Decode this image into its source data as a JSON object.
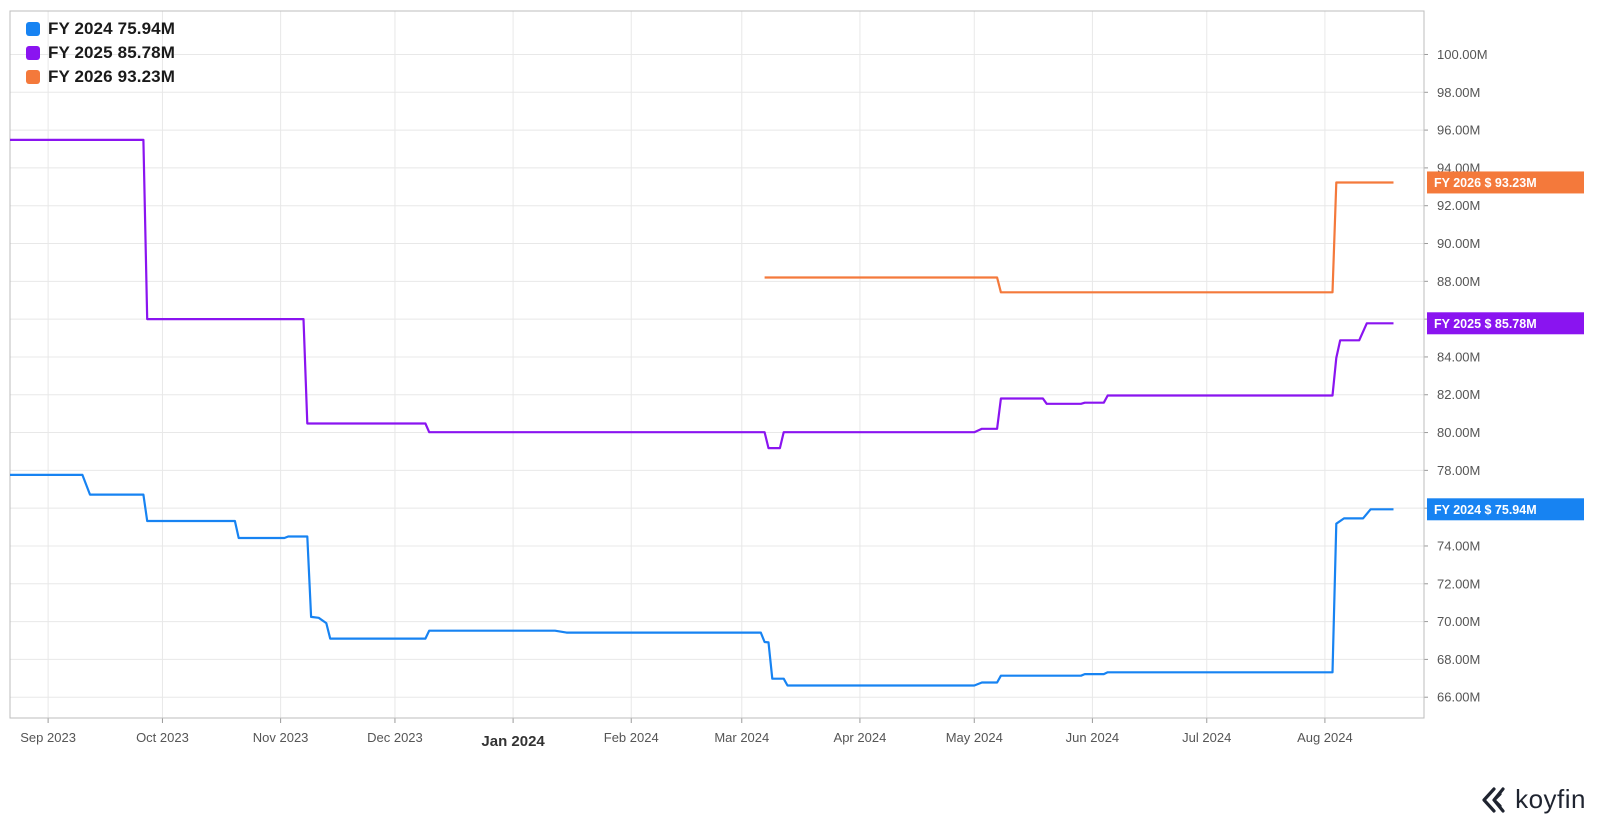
{
  "legend": [
    {
      "name": "FY 2024",
      "value": "75.94M",
      "color": "#1783f2"
    },
    {
      "name": "FY 2025",
      "value": "85.78M",
      "color": "#8a14f0"
    },
    {
      "name": "FY 2026",
      "value": "93.23M",
      "color": "#f4793b"
    }
  ],
  "brand": {
    "name": "koyfin",
    "icon": "koyfin-logo-icon"
  },
  "chart_data": {
    "type": "line",
    "title": "",
    "xlabel": "",
    "ylabel": "",
    "x_ticks": [
      {
        "date": "2023-09-01",
        "label": "Sep 2023",
        "bold": false
      },
      {
        "date": "2023-10-01",
        "label": "Oct 2023",
        "bold": false
      },
      {
        "date": "2023-11-01",
        "label": "Nov 2023",
        "bold": false
      },
      {
        "date": "2023-12-01",
        "label": "Dec 2023",
        "bold": false
      },
      {
        "date": "2024-01-01",
        "label": "Jan 2024",
        "bold": true
      },
      {
        "date": "2024-02-01",
        "label": "Feb 2024",
        "bold": false
      },
      {
        "date": "2024-03-01",
        "label": "Mar 2024",
        "bold": false
      },
      {
        "date": "2024-04-01",
        "label": "Apr 2024",
        "bold": false
      },
      {
        "date": "2024-05-01",
        "label": "May 2024",
        "bold": false
      },
      {
        "date": "2024-06-01",
        "label": "Jun 2024",
        "bold": false
      },
      {
        "date": "2024-07-01",
        "label": "Jul 2024",
        "bold": false
      },
      {
        "date": "2024-08-01",
        "label": "Aug 2024",
        "bold": false
      }
    ],
    "xlim": [
      "2023-08-22",
      "2024-08-27"
    ],
    "y_ticks": [
      {
        "value": 66,
        "label": "66.00M"
      },
      {
        "value": 68,
        "label": "68.00M"
      },
      {
        "value": 70,
        "label": "70.00M"
      },
      {
        "value": 72,
        "label": "72.00M"
      },
      {
        "value": 74,
        "label": "74.00M"
      },
      {
        "value": 76,
        "label": "76.00M"
      },
      {
        "value": 78,
        "label": "78.00M"
      },
      {
        "value": 80,
        "label": "80.00M"
      },
      {
        "value": 82,
        "label": "82.00M"
      },
      {
        "value": 84,
        "label": "84.00M"
      },
      {
        "value": 86,
        "label": "86.00M"
      },
      {
        "value": 88,
        "label": "88.00M"
      },
      {
        "value": 90,
        "label": "90.00M"
      },
      {
        "value": 92,
        "label": "92.00M"
      },
      {
        "value": 94,
        "label": "94.00M"
      },
      {
        "value": 96,
        "label": "96.00M"
      },
      {
        "value": 98,
        "label": "98.00M"
      },
      {
        "value": 100,
        "label": "100.00M"
      }
    ],
    "ylim": [
      64.9,
      102.3
    ],
    "grid": true,
    "legend_position": "top-left",
    "series": [
      {
        "name": "FY 2024",
        "color": "#1783f2",
        "end_label": "FY 2024  $ 75.94M",
        "points": [
          [
            "2023-08-22",
            77.76
          ],
          [
            "2023-09-10",
            77.76
          ],
          [
            "2023-09-12",
            76.72
          ],
          [
            "2023-09-26",
            76.72
          ],
          [
            "2023-09-27",
            75.32
          ],
          [
            "2023-10-20",
            75.32
          ],
          [
            "2023-10-21",
            74.42
          ],
          [
            "2023-11-02",
            74.42
          ],
          [
            "2023-11-03",
            74.5
          ],
          [
            "2023-11-08",
            74.5
          ],
          [
            "2023-11-09",
            70.25
          ],
          [
            "2023-11-11",
            70.2
          ],
          [
            "2023-11-13",
            69.92
          ],
          [
            "2023-11-14",
            69.1
          ],
          [
            "2023-12-09",
            69.1
          ],
          [
            "2023-12-10",
            69.52
          ],
          [
            "2024-01-12",
            69.52
          ],
          [
            "2024-01-15",
            69.42
          ],
          [
            "2024-03-06",
            69.42
          ],
          [
            "2024-03-07",
            68.92
          ],
          [
            "2024-03-08",
            68.9
          ],
          [
            "2024-03-09",
            66.98
          ],
          [
            "2024-03-12",
            66.98
          ],
          [
            "2024-03-13",
            66.62
          ],
          [
            "2024-05-01",
            66.62
          ],
          [
            "2024-05-03",
            66.78
          ],
          [
            "2024-05-07",
            66.78
          ],
          [
            "2024-05-08",
            67.14
          ],
          [
            "2024-05-29",
            67.14
          ],
          [
            "2024-05-30",
            67.22
          ],
          [
            "2024-06-04",
            67.22
          ],
          [
            "2024-06-05",
            67.32
          ],
          [
            "2024-08-03",
            67.32
          ],
          [
            "2024-08-04",
            75.18
          ],
          [
            "2024-08-06",
            75.46
          ],
          [
            "2024-08-11",
            75.46
          ],
          [
            "2024-08-13",
            75.94
          ],
          [
            "2024-08-19",
            75.94
          ]
        ]
      },
      {
        "name": "FY 2025",
        "color": "#8a14f0",
        "end_label": "FY 2025  $ 85.78M",
        "points": [
          [
            "2023-08-22",
            95.48
          ],
          [
            "2023-09-26",
            95.48
          ],
          [
            "2023-09-27",
            86.0
          ],
          [
            "2023-11-07",
            86.0
          ],
          [
            "2023-11-08",
            80.48
          ],
          [
            "2023-12-09",
            80.48
          ],
          [
            "2023-12-10",
            80.02
          ],
          [
            "2024-03-07",
            80.02
          ],
          [
            "2024-03-08",
            79.18
          ],
          [
            "2024-03-11",
            79.18
          ],
          [
            "2024-03-12",
            80.02
          ],
          [
            "2024-05-01",
            80.02
          ],
          [
            "2024-05-03",
            80.2
          ],
          [
            "2024-05-07",
            80.2
          ],
          [
            "2024-05-08",
            81.8
          ],
          [
            "2024-05-19",
            81.8
          ],
          [
            "2024-05-20",
            81.52
          ],
          [
            "2024-05-29",
            81.52
          ],
          [
            "2024-05-30",
            81.58
          ],
          [
            "2024-06-04",
            81.58
          ],
          [
            "2024-06-05",
            81.96
          ],
          [
            "2024-08-03",
            81.96
          ],
          [
            "2024-08-04",
            83.95
          ],
          [
            "2024-08-05",
            84.88
          ],
          [
            "2024-08-10",
            84.88
          ],
          [
            "2024-08-12",
            85.78
          ],
          [
            "2024-08-19",
            85.78
          ]
        ]
      },
      {
        "name": "FY 2026",
        "color": "#f4793b",
        "end_label": "FY 2026  $ 93.23M",
        "points": [
          [
            "2024-03-07",
            88.2
          ],
          [
            "2024-05-07",
            88.2
          ],
          [
            "2024-05-08",
            87.42
          ],
          [
            "2024-08-03",
            87.42
          ],
          [
            "2024-08-04",
            93.23
          ],
          [
            "2024-08-19",
            93.23
          ]
        ]
      }
    ]
  }
}
